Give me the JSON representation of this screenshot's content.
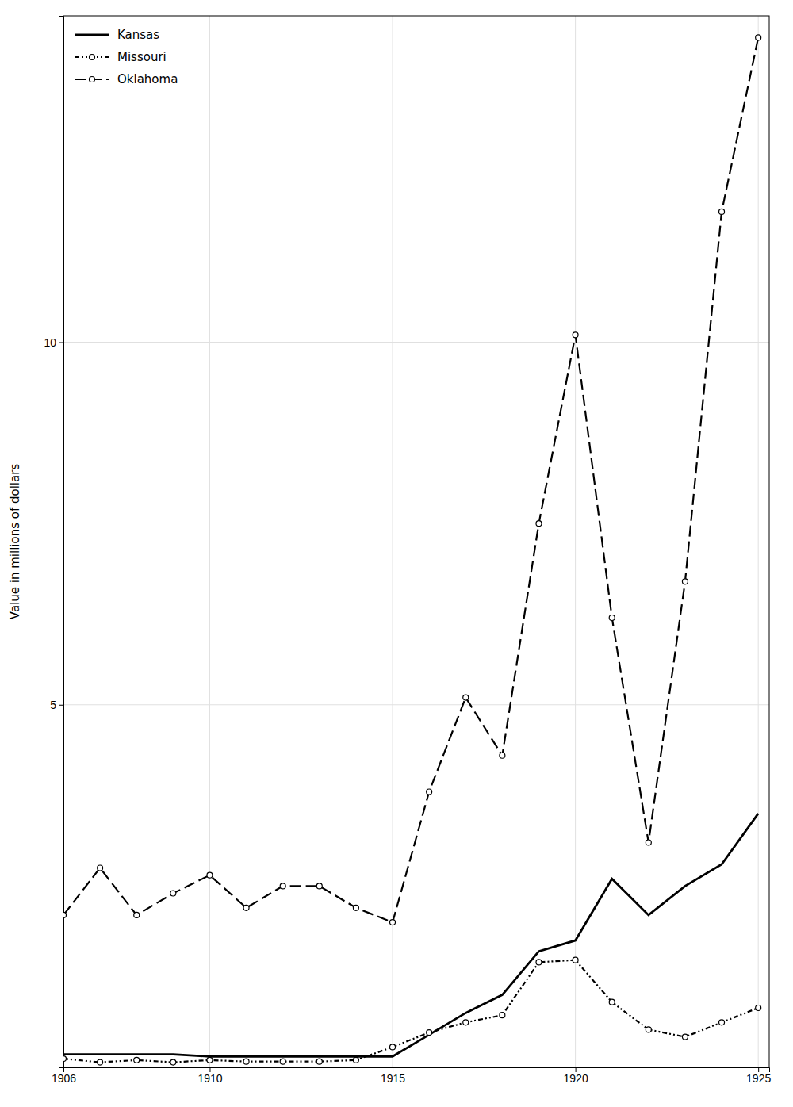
{
  "chart_data": {
    "type": "line",
    "y_label": "Value in millions of dollars",
    "xlim": [
      1906,
      1925.3
    ],
    "ylim": [
      0,
      14.5
    ],
    "xticks": [
      1906,
      1910,
      1915,
      1920,
      1925
    ],
    "yticks": [
      5,
      10
    ],
    "grid": true,
    "legend": "upper-left",
    "x": [
      1906,
      1907,
      1908,
      1909,
      1910,
      1911,
      1912,
      1913,
      1914,
      1915,
      1916,
      1917,
      1918,
      1919,
      1920,
      1921,
      1922,
      1923,
      1924,
      1925
    ],
    "series": [
      {
        "name": "Kansas",
        "color": "#000000",
        "line_style": "solid",
        "marker": "none",
        "values": [
          0.18,
          0.18,
          0.18,
          0.18,
          0.15,
          0.15,
          0.15,
          0.15,
          0.15,
          0.15,
          0.45,
          0.75,
          1.0,
          1.6,
          1.75,
          2.6,
          2.1,
          2.5,
          2.8,
          3.5
        ]
      },
      {
        "name": "Missouri",
        "color": "#000000",
        "line_style": "dashdot",
        "marker": "circle",
        "values": [
          0.12,
          0.07,
          0.1,
          0.07,
          0.1,
          0.08,
          0.08,
          0.08,
          0.1,
          0.28,
          0.48,
          0.62,
          0.72,
          1.45,
          1.48,
          0.9,
          0.52,
          0.42,
          0.62,
          0.82
        ]
      },
      {
        "name": "Oklahoma",
        "color": "#000000",
        "line_style": "dashed",
        "marker": "circle",
        "values": [
          2.1,
          2.75,
          2.1,
          2.4,
          2.65,
          2.2,
          2.5,
          2.5,
          2.2,
          2.0,
          3.8,
          5.1,
          4.3,
          7.5,
          10.1,
          6.2,
          3.1,
          6.7,
          11.8,
          14.2
        ]
      }
    ]
  }
}
